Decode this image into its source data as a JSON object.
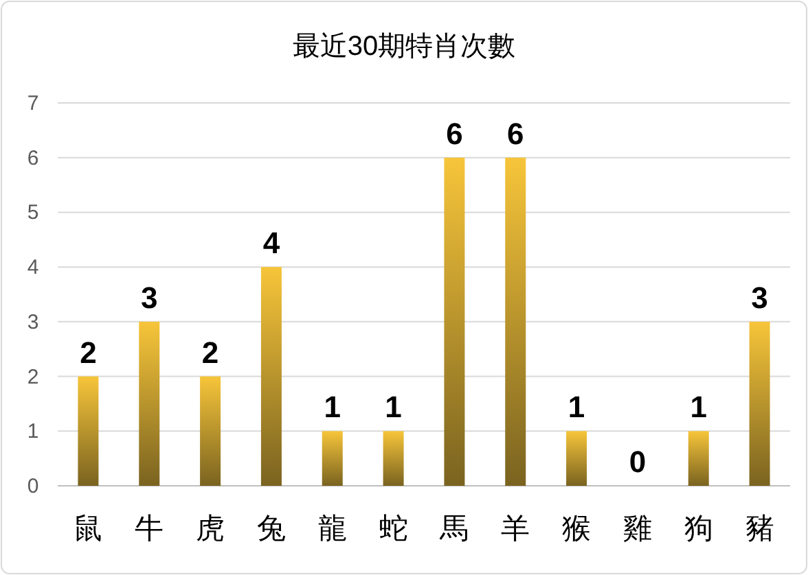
{
  "chart_data": {
    "type": "bar",
    "title": "最近30期特肖次數",
    "categories": [
      "鼠",
      "牛",
      "虎",
      "兔",
      "龍",
      "蛇",
      "馬",
      "羊",
      "猴",
      "雞",
      "狗",
      "豬"
    ],
    "values": [
      2,
      3,
      2,
      4,
      1,
      1,
      6,
      6,
      1,
      0,
      1,
      3
    ],
    "color": "#f7c53a",
    "ylim": [
      0,
      7
    ],
    "yticks": [
      0,
      1,
      2,
      3,
      4,
      5,
      6,
      7
    ],
    "grid": "y",
    "data_labels": true
  }
}
